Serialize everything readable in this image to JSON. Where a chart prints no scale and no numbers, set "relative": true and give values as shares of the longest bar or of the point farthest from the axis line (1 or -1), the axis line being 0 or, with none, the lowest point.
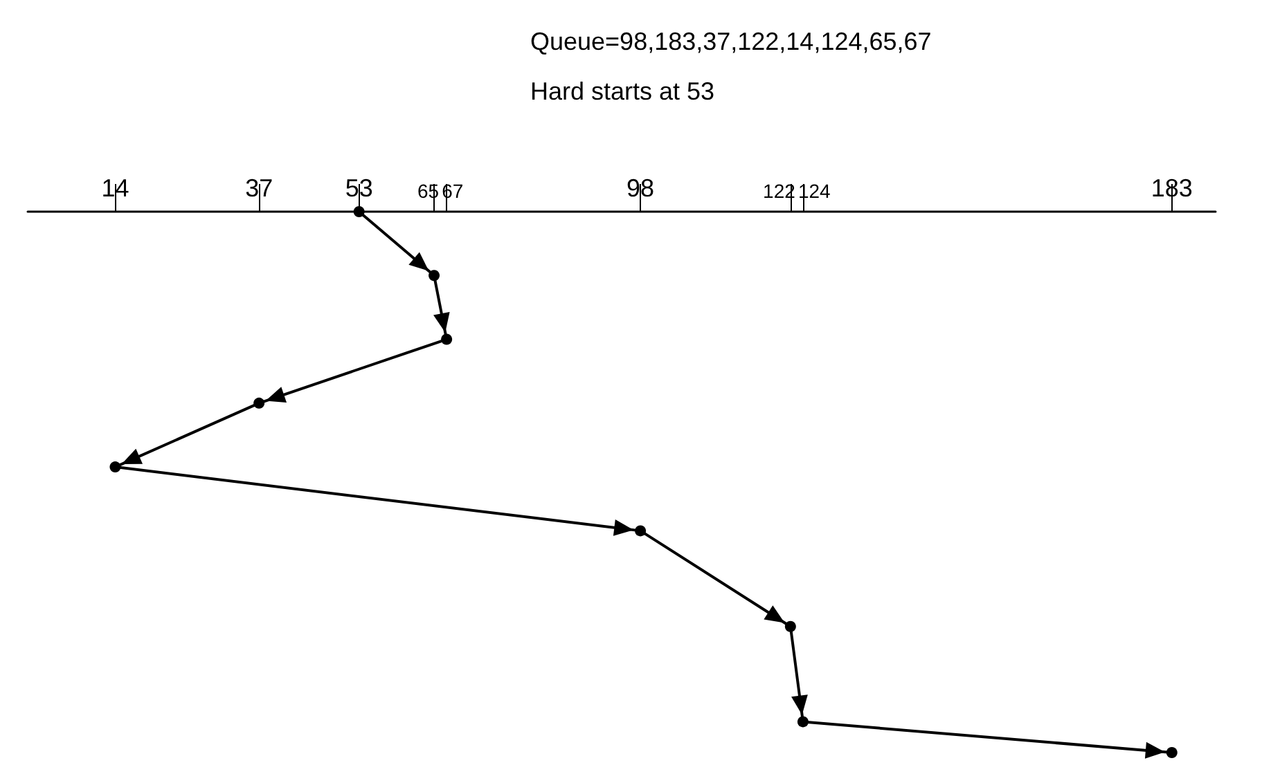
{
  "chart_data": {
    "type": "line",
    "title": "Queue=98,183,37,122,14,124,65,67",
    "subtitle": "Hard starts at 53",
    "relative": true,
    "x": [
      53,
      65,
      67,
      37,
      14,
      98,
      122,
      124,
      183
    ],
    "series": [
      {
        "color": "#000000",
        "values": [
          0,
          -0.118,
          -0.236,
          -0.354,
          -0.472,
          -0.59,
          -0.767,
          -0.943,
          -1
        ]
      }
    ],
    "xlim": [
      0,
      190
    ],
    "xticks": [
      14,
      37,
      53,
      65,
      67,
      98,
      122,
      124,
      183
    ],
    "marker": "circle",
    "grid": false
  }
}
